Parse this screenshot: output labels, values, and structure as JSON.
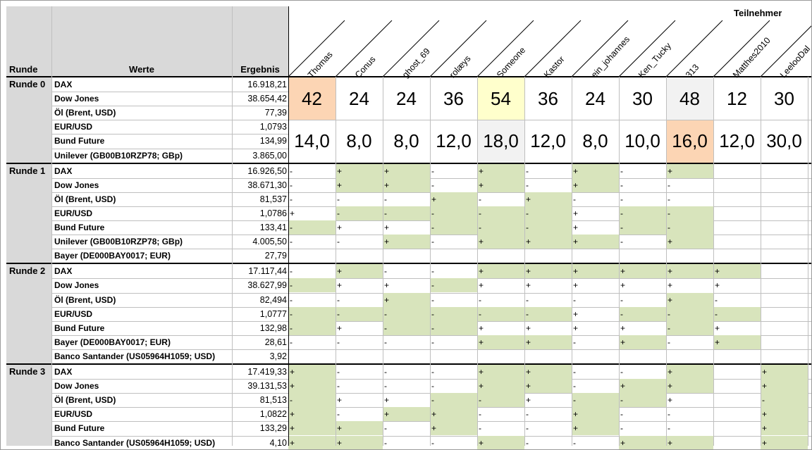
{
  "header": {
    "runde": "Runde",
    "werte": "Werte",
    "ergebnis": "Ergebnis",
    "teilnehmer": "Teilnehmer"
  },
  "participants": [
    "Thomas",
    "Conus",
    "ghost_69",
    "rolæys",
    "Someone",
    "Kastor",
    "ein_johannes",
    "Ken_Tucky",
    "313",
    "Matthes2010",
    "LeelooDal"
  ],
  "colors": {
    "green": "#d8e4bc",
    "orange": "#fcd5b4",
    "yellow": "#ffffcc",
    "lightgray": "#f2f2f2",
    "header_gray": "#d9d9d9"
  },
  "rounds": [
    {
      "label": "Runde 0",
      "rows": [
        {
          "name": "DAX",
          "value": "16.918,21"
        },
        {
          "name": "Dow Jones",
          "value": "38.654,42"
        },
        {
          "name": "Öl (Brent, USD)",
          "value": "77,39"
        },
        {
          "name": "EUR/USD",
          "value": "1,0793"
        },
        {
          "name": "Bund Future",
          "value": "134,99"
        },
        {
          "name": "Unilever (GB00B10RZP78; GBp)",
          "value": "3.865,00"
        }
      ],
      "scores": [
        "42",
        "24",
        "24",
        "36",
        "54",
        "36",
        "24",
        "30",
        "48",
        "12",
        "30"
      ],
      "score_colors": [
        "orange",
        "",
        "",
        "",
        "yellow",
        "",
        "",
        "",
        "lightgray",
        "",
        ""
      ],
      "factors": [
        "14,0",
        "8,0",
        "8,0",
        "12,0",
        "18,0",
        "12,0",
        "8,0",
        "10,0",
        "16,0",
        "12,0",
        "30,0"
      ],
      "factor_colors": [
        "",
        "",
        "",
        "",
        "lightgray",
        "",
        "",
        "",
        "orange",
        "",
        ""
      ]
    },
    {
      "label": "Runde 1",
      "rows": [
        {
          "name": "DAX",
          "value": "16.926,50",
          "tips": [
            "-",
            "+",
            "+",
            "-",
            "+",
            "-",
            "+",
            "-",
            "+",
            "",
            ""
          ],
          "hl": [
            0,
            1,
            1,
            0,
            1,
            0,
            1,
            0,
            1,
            0,
            0
          ]
        },
        {
          "name": "Dow Jones",
          "value": "38.671,30",
          "tips": [
            "-",
            "+",
            "+",
            "-",
            "+",
            "-",
            "+",
            "-",
            "-",
            "",
            ""
          ],
          "hl": [
            0,
            1,
            1,
            0,
            1,
            0,
            1,
            0,
            0,
            0,
            0
          ]
        },
        {
          "name": "Öl (Brent, USD)",
          "value": "81,537",
          "tips": [
            "-",
            "-",
            "-",
            "+",
            "-",
            "+",
            "-",
            "-",
            "-",
            "",
            ""
          ],
          "hl": [
            0,
            0,
            0,
            1,
            0,
            1,
            0,
            0,
            0,
            0,
            0
          ]
        },
        {
          "name": "EUR/USD",
          "value": "1,0786",
          "tips": [
            "+",
            "-",
            "-",
            "-",
            "-",
            "-",
            "+",
            "-",
            "-",
            "",
            ""
          ],
          "hl": [
            0,
            1,
            1,
            1,
            1,
            1,
            0,
            1,
            1,
            0,
            0
          ]
        },
        {
          "name": "Bund Future",
          "value": "133,41",
          "tips": [
            "-",
            "+",
            "+",
            "-",
            "-",
            "-",
            "+",
            "-",
            "-",
            "",
            ""
          ],
          "hl": [
            1,
            0,
            0,
            1,
            1,
            1,
            0,
            1,
            1,
            0,
            0
          ]
        },
        {
          "name": "Unilever (GB00B10RZP78; GBp)",
          "value": "4.005,50",
          "tips": [
            "-",
            "-",
            "+",
            "-",
            "+",
            "+",
            "+",
            "-",
            "+",
            "",
            ""
          ],
          "hl": [
            0,
            0,
            1,
            0,
            1,
            1,
            1,
            0,
            1,
            0,
            0
          ]
        },
        {
          "name": "Bayer (DE000BAY0017; EUR)",
          "value": "27,79",
          "tips": [
            "",
            "",
            "",
            "",
            "",
            "",
            "",
            "",
            "",
            "",
            ""
          ],
          "hl": [
            0,
            0,
            0,
            0,
            0,
            0,
            0,
            0,
            0,
            0,
            0
          ]
        }
      ]
    },
    {
      "label": "Runde 2",
      "rows": [
        {
          "name": "DAX",
          "value": "17.117,44",
          "tips": [
            "-",
            "+",
            "-",
            "-",
            "+",
            "+",
            "+",
            "+",
            "+",
            "+",
            ""
          ],
          "hl": [
            0,
            1,
            0,
            0,
            1,
            1,
            1,
            1,
            1,
            1,
            0
          ]
        },
        {
          "name": "Dow Jones",
          "value": "38.627,99",
          "tips": [
            "-",
            "+",
            "+",
            "-",
            "+",
            "+",
            "+",
            "+",
            "+",
            "+",
            ""
          ],
          "hl": [
            1,
            0,
            0,
            1,
            0,
            0,
            0,
            0,
            0,
            0,
            0
          ]
        },
        {
          "name": "Öl (Brent, USD)",
          "value": "82,494",
          "tips": [
            "-",
            "-",
            "+",
            "-",
            "-",
            "-",
            "-",
            "-",
            "+",
            "-",
            ""
          ],
          "hl": [
            0,
            0,
            1,
            0,
            0,
            0,
            0,
            0,
            1,
            0,
            0
          ]
        },
        {
          "name": "EUR/USD",
          "value": "1,0777",
          "tips": [
            "-",
            "-",
            "-",
            "-",
            "-",
            "-",
            "+",
            "-",
            "-",
            "-",
            ""
          ],
          "hl": [
            1,
            1,
            1,
            1,
            1,
            1,
            0,
            1,
            1,
            1,
            0
          ]
        },
        {
          "name": "Bund Future",
          "value": "132,98",
          "tips": [
            "-",
            "+",
            "-",
            "-",
            "+",
            "+",
            "+",
            "+",
            "-",
            "+",
            ""
          ],
          "hl": [
            1,
            0,
            1,
            1,
            0,
            0,
            0,
            0,
            1,
            0,
            0
          ]
        },
        {
          "name": "Bayer (DE000BAY0017; EUR)",
          "value": "28,61",
          "tips": [
            "-",
            "-",
            "-",
            "-",
            "+",
            "+",
            "-",
            "+",
            "-",
            "+",
            ""
          ],
          "hl": [
            0,
            0,
            0,
            0,
            1,
            1,
            0,
            1,
            0,
            1,
            0
          ]
        },
        {
          "name": "Banco Santander (US05964H1059; USD)",
          "value": "3,92",
          "tips": [
            "",
            "",
            "",
            "",
            "",
            "",
            "",
            "",
            "",
            "",
            ""
          ],
          "hl": [
            0,
            0,
            0,
            0,
            0,
            0,
            0,
            0,
            0,
            0,
            0
          ]
        }
      ]
    },
    {
      "label": "Runde 3",
      "rows": [
        {
          "name": "DAX",
          "value": "17.419,33",
          "tips": [
            "+",
            "-",
            "-",
            "-",
            "+",
            "+",
            "-",
            "-",
            "+",
            "",
            "+"
          ],
          "hl": [
            1,
            0,
            0,
            0,
            1,
            1,
            0,
            0,
            1,
            0,
            1
          ]
        },
        {
          "name": "Dow Jones",
          "value": "39.131,53",
          "tips": [
            "+",
            "-",
            "-",
            "-",
            "+",
            "+",
            "-",
            "+",
            "+",
            "",
            "+"
          ],
          "hl": [
            1,
            0,
            0,
            0,
            1,
            1,
            0,
            1,
            1,
            0,
            1
          ]
        },
        {
          "name": "Öl (Brent, USD)",
          "value": "81,513",
          "tips": [
            "-",
            "+",
            "+",
            "-",
            "-",
            "+",
            "-",
            "-",
            "+",
            "",
            "-"
          ],
          "hl": [
            1,
            0,
            0,
            1,
            1,
            0,
            1,
            1,
            0,
            0,
            1
          ]
        },
        {
          "name": "EUR/USD",
          "value": "1,0822",
          "tips": [
            "+",
            "-",
            "+",
            "+",
            "-",
            "-",
            "+",
            "-",
            "-",
            "",
            "+"
          ],
          "hl": [
            1,
            0,
            1,
            1,
            0,
            0,
            1,
            0,
            0,
            0,
            1
          ]
        },
        {
          "name": "Bund Future",
          "value": "133,29",
          "tips": [
            "+",
            "+",
            "-",
            "+",
            "-",
            "-",
            "+",
            "-",
            "-",
            "",
            "+"
          ],
          "hl": [
            1,
            1,
            0,
            1,
            0,
            0,
            1,
            0,
            0,
            0,
            1
          ]
        },
        {
          "name": "Banco Santander (US05964H1059; USD)",
          "value": "4,10",
          "tips": [
            "+",
            "+",
            "-",
            "-",
            "+",
            "-",
            "-",
            "+",
            "+",
            "",
            "+"
          ],
          "hl": [
            1,
            1,
            0,
            0,
            1,
            0,
            0,
            1,
            1,
            0,
            1
          ]
        }
      ]
    }
  ]
}
